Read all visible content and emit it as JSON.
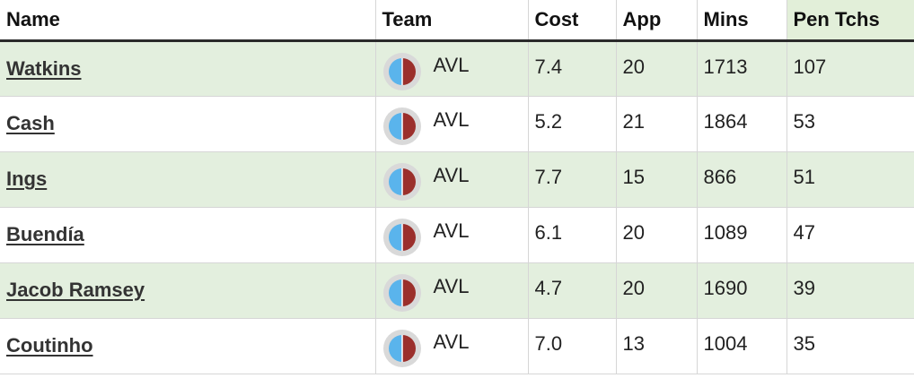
{
  "table": {
    "headers": {
      "name": "Name",
      "team": "Team",
      "cost": "Cost",
      "app": "App",
      "mins": "Mins",
      "pen_tchs": "Pen Tchs"
    },
    "active_sort_column": "Pen Tchs",
    "rows": [
      {
        "name": "Watkins",
        "team": "AVL",
        "cost": "7.4",
        "app": "20",
        "mins": "1713",
        "pen_tchs": "107"
      },
      {
        "name": "Cash",
        "team": "AVL",
        "cost": "5.2",
        "app": "21",
        "mins": "1864",
        "pen_tchs": "53"
      },
      {
        "name": "Ings",
        "team": "AVL",
        "cost": "7.7",
        "app": "15",
        "mins": "866",
        "pen_tchs": "51"
      },
      {
        "name": "Buendía",
        "team": "AVL",
        "cost": "6.1",
        "app": "20",
        "mins": "1089",
        "pen_tchs": "47"
      },
      {
        "name": "Jacob Ramsey",
        "team": "AVL",
        "cost": "4.7",
        "app": "20",
        "mins": "1690",
        "pen_tchs": "39"
      },
      {
        "name": "Coutinho",
        "team": "AVL",
        "cost": "7.0",
        "app": "13",
        "mins": "1004",
        "pen_tchs": "35"
      }
    ]
  },
  "team_badge": {
    "icon": "team-colors-icon",
    "left_color": "#5ab4ec",
    "right_color": "#9b2f2c",
    "ring_color": "#d9d9d9"
  },
  "colors": {
    "odd_row": "#e3efde",
    "active_header": "#e2efd9",
    "header_rule": "#2b2b2b"
  }
}
